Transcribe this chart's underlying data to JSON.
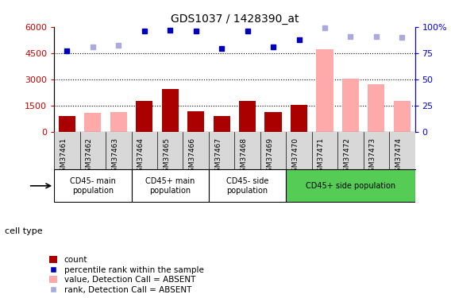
{
  "title": "GDS1037 / 1428390_at",
  "samples": [
    "GSM37461",
    "GSM37462",
    "GSM37463",
    "GSM37464",
    "GSM37465",
    "GSM37466",
    "GSM37467",
    "GSM37468",
    "GSM37469",
    "GSM37470",
    "GSM37471",
    "GSM37472",
    "GSM37473",
    "GSM37474"
  ],
  "count_values": [
    900,
    null,
    null,
    1750,
    2450,
    1150,
    900,
    1750,
    1100,
    1550,
    null,
    null,
    null,
    null
  ],
  "absent_value_bars": [
    null,
    1050,
    1100,
    null,
    null,
    null,
    null,
    null,
    null,
    null,
    4700,
    3050,
    2700,
    1750
  ],
  "percentile_rank": [
    77,
    null,
    null,
    96,
    97,
    96,
    79,
    96,
    81,
    88,
    null,
    null,
    null,
    null
  ],
  "absent_rank": [
    null,
    81,
    82,
    null,
    null,
    null,
    null,
    null,
    null,
    null,
    99,
    91,
    91,
    90
  ],
  "cell_types": [
    {
      "label": "CD45- main\npopulation",
      "start": 0,
      "end": 3,
      "color": "#ffffff"
    },
    {
      "label": "CD45+ main\npopulation",
      "start": 3,
      "end": 6,
      "color": "#ffffff"
    },
    {
      "label": "CD45- side\npopulation",
      "start": 6,
      "end": 9,
      "color": "#ffffff"
    },
    {
      "label": "CD45+ side population",
      "start": 9,
      "end": 14,
      "color": "#55cc55"
    }
  ],
  "ylim_left": [
    0,
    6000
  ],
  "ylim_right": [
    0,
    100
  ],
  "yticks_left": [
    0,
    1500,
    3000,
    4500,
    6000
  ],
  "yticks_right": [
    0,
    25,
    50,
    75,
    100
  ],
  "bar_color_count": "#aa0000",
  "bar_color_absent": "#ffaaaa",
  "dot_color_rank": "#0000bb",
  "dot_color_absent_rank": "#aaaadd",
  "cell_type_bg_green": "#55cc55",
  "legend_items": [
    {
      "color": "#aa0000",
      "label": "count",
      "type": "bar"
    },
    {
      "color": "#0000bb",
      "label": "percentile rank within the sample",
      "type": "dot"
    },
    {
      "color": "#ffaaaa",
      "label": "value, Detection Call = ABSENT",
      "type": "bar"
    },
    {
      "color": "#aaaadd",
      "label": "rank, Detection Call = ABSENT",
      "type": "dot"
    }
  ]
}
